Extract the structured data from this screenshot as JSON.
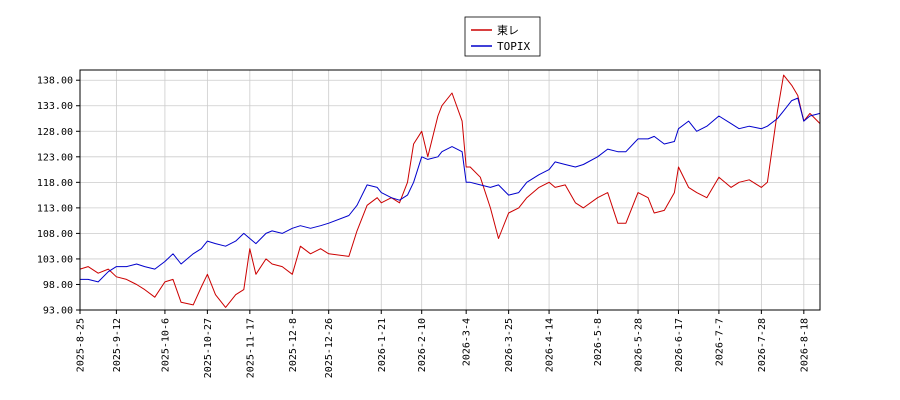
{
  "chart_data": {
    "type": "line",
    "title": "",
    "xlabel": "",
    "ylabel": "",
    "ylim": [
      93.0,
      140.0
    ],
    "yticks": [
      "93.00",
      "98.00",
      "103.00",
      "108.00",
      "113.00",
      "118.00",
      "123.00",
      "128.00",
      "133.00",
      "138.00"
    ],
    "xlim": [
      "2025-08-25",
      "2026-08-26"
    ],
    "xticks": [
      "2025-8-25",
      "2025-9-12",
      "2025-10-6",
      "2025-10-27",
      "2025-11-17",
      "2025-12-8",
      "2025-12-26",
      "2026-1-21",
      "2026-2-10",
      "2026-3-4",
      "2026-3-25",
      "2026-4-14",
      "2026-5-8",
      "2026-5-28",
      "2026-6-17",
      "2026-7-7",
      "2026-7-28",
      "2026-8-18"
    ],
    "grid": true,
    "legend": "top-center",
    "series": [
      {
        "name": "東レ",
        "color": "#cc0000",
        "points": [
          [
            "2025-08-25",
            101.0
          ],
          [
            "2025-08-29",
            101.5
          ],
          [
            "2025-09-03",
            100.2
          ],
          [
            "2025-09-08",
            101.0
          ],
          [
            "2025-09-12",
            99.5
          ],
          [
            "2025-09-17",
            99.0
          ],
          [
            "2025-09-22",
            98.0
          ],
          [
            "2025-09-26",
            97.0
          ],
          [
            "2025-10-01",
            95.5
          ],
          [
            "2025-10-06",
            98.5
          ],
          [
            "2025-10-10",
            99.0
          ],
          [
            "2025-10-14",
            94.5
          ],
          [
            "2025-10-20",
            94.0
          ],
          [
            "2025-10-24",
            97.5
          ],
          [
            "2025-10-27",
            100.0
          ],
          [
            "2025-10-31",
            96.0
          ],
          [
            "2025-11-05",
            93.5
          ],
          [
            "2025-11-10",
            96.0
          ],
          [
            "2025-11-14",
            97.0
          ],
          [
            "2025-11-17",
            105.0
          ],
          [
            "2025-11-20",
            100.0
          ],
          [
            "2025-11-25",
            103.0
          ],
          [
            "2025-11-28",
            102.0
          ],
          [
            "2025-12-03",
            101.5
          ],
          [
            "2025-12-08",
            100.0
          ],
          [
            "2025-12-12",
            105.5
          ],
          [
            "2025-12-17",
            104.0
          ],
          [
            "2025-12-22",
            105.0
          ],
          [
            "2025-12-26",
            104.0
          ],
          [
            "2026-01-05",
            103.5
          ],
          [
            "2026-01-09",
            108.5
          ],
          [
            "2026-01-14",
            113.5
          ],
          [
            "2026-01-19",
            115.0
          ],
          [
            "2026-01-21",
            114.0
          ],
          [
            "2026-01-26",
            115.0
          ],
          [
            "2026-01-30",
            114.0
          ],
          [
            "2026-02-03",
            118.0
          ],
          [
            "2026-02-06",
            125.5
          ],
          [
            "2026-02-10",
            128.0
          ],
          [
            "2026-02-13",
            123.0
          ],
          [
            "2026-02-18",
            131.0
          ],
          [
            "2026-02-20",
            133.0
          ],
          [
            "2026-02-25",
            135.5
          ],
          [
            "2026-03-02",
            130.0
          ],
          [
            "2026-03-04",
            121.0
          ],
          [
            "2026-03-06",
            121.0
          ],
          [
            "2026-03-11",
            119.0
          ],
          [
            "2026-03-16",
            113.0
          ],
          [
            "2026-03-20",
            107.0
          ],
          [
            "2026-03-25",
            112.0
          ],
          [
            "2026-03-30",
            113.0
          ],
          [
            "2026-04-03",
            115.0
          ],
          [
            "2026-04-09",
            117.0
          ],
          [
            "2026-04-14",
            118.0
          ],
          [
            "2026-04-17",
            117.0
          ],
          [
            "2026-04-22",
            117.5
          ],
          [
            "2026-04-27",
            114.0
          ],
          [
            "2026-05-01",
            113.0
          ],
          [
            "2026-05-08",
            115.0
          ],
          [
            "2026-05-13",
            116.0
          ],
          [
            "2026-05-18",
            110.0
          ],
          [
            "2026-05-22",
            110.0
          ],
          [
            "2026-05-28",
            116.0
          ],
          [
            "2026-06-02",
            115.0
          ],
          [
            "2026-06-05",
            112.0
          ],
          [
            "2026-06-10",
            112.5
          ],
          [
            "2026-06-15",
            116.0
          ],
          [
            "2026-06-17",
            121.0
          ],
          [
            "2026-06-22",
            117.0
          ],
          [
            "2026-06-26",
            116.0
          ],
          [
            "2026-07-01",
            115.0
          ],
          [
            "2026-07-07",
            119.0
          ],
          [
            "2026-07-13",
            117.0
          ],
          [
            "2026-07-17",
            118.0
          ],
          [
            "2026-07-22",
            118.5
          ],
          [
            "2026-07-28",
            117.0
          ],
          [
            "2026-07-31",
            118.0
          ],
          [
            "2026-08-05",
            132.0
          ],
          [
            "2026-08-08",
            139.0
          ],
          [
            "2026-08-12",
            137.0
          ],
          [
            "2026-08-15",
            135.0
          ],
          [
            "2026-08-18",
            130.0
          ],
          [
            "2026-08-21",
            131.5
          ],
          [
            "2026-08-26",
            129.5
          ]
        ]
      },
      {
        "name": "TOPIX",
        "color": "#0000cc",
        "points": [
          [
            "2025-08-25",
            99.0
          ],
          [
            "2025-08-29",
            99.0
          ],
          [
            "2025-09-03",
            98.5
          ],
          [
            "2025-09-08",
            100.5
          ],
          [
            "2025-09-12",
            101.5
          ],
          [
            "2025-09-17",
            101.5
          ],
          [
            "2025-09-22",
            102.0
          ],
          [
            "2025-09-26",
            101.5
          ],
          [
            "2025-10-01",
            101.0
          ],
          [
            "2025-10-06",
            102.5
          ],
          [
            "2025-10-10",
            104.0
          ],
          [
            "2025-10-14",
            102.0
          ],
          [
            "2025-10-20",
            104.0
          ],
          [
            "2025-10-24",
            105.0
          ],
          [
            "2025-10-27",
            106.5
          ],
          [
            "2025-10-31",
            106.0
          ],
          [
            "2025-11-05",
            105.5
          ],
          [
            "2025-11-10",
            106.5
          ],
          [
            "2025-11-14",
            108.0
          ],
          [
            "2025-11-17",
            107.0
          ],
          [
            "2025-11-20",
            106.0
          ],
          [
            "2025-11-25",
            108.0
          ],
          [
            "2025-11-28",
            108.5
          ],
          [
            "2025-12-03",
            108.0
          ],
          [
            "2025-12-08",
            109.0
          ],
          [
            "2025-12-12",
            109.5
          ],
          [
            "2025-12-17",
            109.0
          ],
          [
            "2025-12-22",
            109.5
          ],
          [
            "2025-12-26",
            110.0
          ],
          [
            "2026-01-05",
            111.5
          ],
          [
            "2026-01-09",
            113.5
          ],
          [
            "2026-01-14",
            117.5
          ],
          [
            "2026-01-19",
            117.0
          ],
          [
            "2026-01-21",
            116.0
          ],
          [
            "2026-01-26",
            115.0
          ],
          [
            "2026-01-30",
            114.5
          ],
          [
            "2026-02-03",
            115.5
          ],
          [
            "2026-02-06",
            118.0
          ],
          [
            "2026-02-10",
            123.0
          ],
          [
            "2026-02-13",
            122.5
          ],
          [
            "2026-02-18",
            123.0
          ],
          [
            "2026-02-20",
            124.0
          ],
          [
            "2026-02-25",
            125.0
          ],
          [
            "2026-03-02",
            124.0
          ],
          [
            "2026-03-04",
            118.0
          ],
          [
            "2026-03-06",
            118.0
          ],
          [
            "2026-03-11",
            117.5
          ],
          [
            "2026-03-16",
            117.0
          ],
          [
            "2026-03-20",
            117.5
          ],
          [
            "2026-03-25",
            115.5
          ],
          [
            "2026-03-30",
            116.0
          ],
          [
            "2026-04-03",
            118.0
          ],
          [
            "2026-04-09",
            119.5
          ],
          [
            "2026-04-14",
            120.5
          ],
          [
            "2026-04-17",
            122.0
          ],
          [
            "2026-04-22",
            121.5
          ],
          [
            "2026-04-27",
            121.0
          ],
          [
            "2026-05-01",
            121.5
          ],
          [
            "2026-05-08",
            123.0
          ],
          [
            "2026-05-13",
            124.5
          ],
          [
            "2026-05-18",
            124.0
          ],
          [
            "2026-05-22",
            124.0
          ],
          [
            "2026-05-28",
            126.5
          ],
          [
            "2026-06-02",
            126.5
          ],
          [
            "2026-06-05",
            127.0
          ],
          [
            "2026-06-10",
            125.5
          ],
          [
            "2026-06-15",
            126.0
          ],
          [
            "2026-06-17",
            128.5
          ],
          [
            "2026-06-22",
            130.0
          ],
          [
            "2026-06-26",
            128.0
          ],
          [
            "2026-07-01",
            129.0
          ],
          [
            "2026-07-07",
            131.0
          ],
          [
            "2026-07-13",
            129.5
          ],
          [
            "2026-07-17",
            128.5
          ],
          [
            "2026-07-22",
            129.0
          ],
          [
            "2026-07-28",
            128.5
          ],
          [
            "2026-07-31",
            129.0
          ],
          [
            "2026-08-05",
            130.5
          ],
          [
            "2026-08-08",
            132.0
          ],
          [
            "2026-08-12",
            134.0
          ],
          [
            "2026-08-15",
            134.5
          ],
          [
            "2026-08-18",
            130.0
          ],
          [
            "2026-08-21",
            131.0
          ],
          [
            "2026-08-26",
            131.5
          ]
        ]
      }
    ]
  }
}
